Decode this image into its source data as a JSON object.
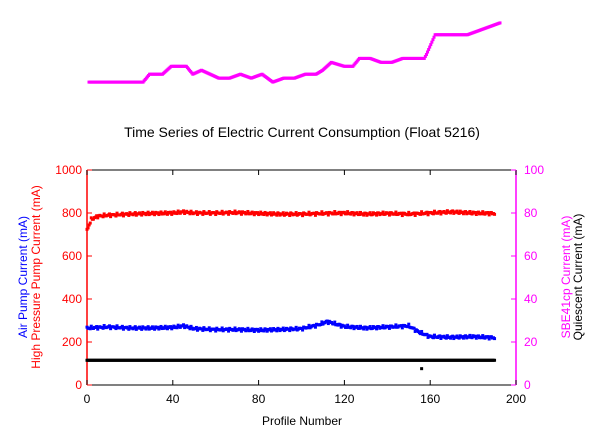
{
  "chart_data": {
    "type": "scatter",
    "title": "Time Series of Electric Current Consumption (Float 5216)",
    "xlabel": "Profile Number",
    "xlim": [
      0,
      200
    ],
    "x_ticks": [
      "0",
      "40",
      "80",
      "120",
      "160",
      "200"
    ],
    "y_left": {
      "labels": [
        {
          "text": "High Pressure Pump Current (mA)",
          "color": "#ff0000"
        },
        {
          "text": "Air Pump Current (mA)",
          "color": "#0000ff"
        }
      ],
      "ylim": [
        0,
        1000
      ],
      "ticks": [
        "0",
        "200",
        "400",
        "600",
        "800",
        "1000"
      ],
      "color": "#ff0000"
    },
    "y_right": {
      "labels": [
        {
          "text": "SBE41cp Current (mA)",
          "color": "#ff00ff"
        },
        {
          "text": "Quiescent Current (mA)",
          "color": "#000000"
        }
      ],
      "ylim": [
        0,
        100
      ],
      "ticks": [
        "0",
        "20",
        "40",
        "60",
        "80",
        "100"
      ],
      "color": "#ff00ff"
    },
    "series": [
      {
        "axis": "left",
        "color": "#ff0000",
        "x_range": [
          0,
          190
        ],
        "points": [
          [
            0,
            720
          ],
          [
            2,
            770
          ],
          [
            5,
            785
          ],
          [
            10,
            790
          ],
          [
            20,
            795
          ],
          [
            30,
            798
          ],
          [
            40,
            800
          ],
          [
            45,
            805
          ],
          [
            50,
            800
          ],
          [
            60,
            800
          ],
          [
            70,
            802
          ],
          [
            80,
            798
          ],
          [
            90,
            795
          ],
          [
            100,
            795
          ],
          [
            110,
            798
          ],
          [
            120,
            800
          ],
          [
            130,
            795
          ],
          [
            140,
            798
          ],
          [
            150,
            795
          ],
          [
            160,
            800
          ],
          [
            170,
            805
          ],
          [
            180,
            800
          ],
          [
            190,
            798
          ]
        ]
      },
      {
        "axis": "left",
        "color": "#0000ff",
        "x_range": [
          0,
          190
        ],
        "points": [
          [
            0,
            265
          ],
          [
            10,
            270
          ],
          [
            20,
            265
          ],
          [
            30,
            265
          ],
          [
            40,
            268
          ],
          [
            45,
            275
          ],
          [
            50,
            262
          ],
          [
            60,
            258
          ],
          [
            70,
            258
          ],
          [
            80,
            255
          ],
          [
            90,
            258
          ],
          [
            100,
            262
          ],
          [
            108,
            280
          ],
          [
            112,
            295
          ],
          [
            120,
            272
          ],
          [
            130,
            265
          ],
          [
            140,
            270
          ],
          [
            150,
            275
          ],
          [
            155,
            245
          ],
          [
            160,
            225
          ],
          [
            170,
            222
          ],
          [
            180,
            225
          ],
          [
            190,
            220
          ]
        ]
      },
      {
        "axis": "right",
        "color": "#000000",
        "x_range": [
          0,
          190
        ],
        "points": [
          [
            0,
            11.5
          ],
          [
            190,
            11.5
          ]
        ],
        "outliers": [
          [
            156,
            7.6
          ]
        ]
      }
    ],
    "sbe41cp_strip": {
      "color": "#ff00ff",
      "x_range": [
        0,
        190
      ],
      "points": [
        [
          0,
          80
        ],
        [
          10,
          80
        ],
        [
          20,
          80
        ],
        [
          25,
          80
        ],
        [
          28,
          82
        ],
        [
          30,
          82
        ],
        [
          34,
          82
        ],
        [
          38,
          84
        ],
        [
          45,
          84
        ],
        [
          48,
          82
        ],
        [
          52,
          83
        ],
        [
          56,
          82
        ],
        [
          60,
          81
        ],
        [
          65,
          81
        ],
        [
          70,
          82
        ],
        [
          75,
          81
        ],
        [
          80,
          82
        ],
        [
          85,
          80
        ],
        [
          90,
          81
        ],
        [
          95,
          81
        ],
        [
          100,
          82
        ],
        [
          105,
          82
        ],
        [
          108,
          83
        ],
        [
          112,
          85
        ],
        [
          118,
          84
        ],
        [
          122,
          84
        ],
        [
          125,
          86
        ],
        [
          130,
          86
        ],
        [
          135,
          85
        ],
        [
          140,
          85
        ],
        [
          145,
          86
        ],
        [
          150,
          86
        ],
        [
          155,
          86
        ],
        [
          156,
          87
        ],
        [
          160,
          92
        ],
        [
          165,
          92
        ],
        [
          170,
          92
        ],
        [
          175,
          92
        ],
        [
          180,
          93
        ],
        [
          185,
          94
        ],
        [
          190,
          95
        ]
      ]
    }
  }
}
